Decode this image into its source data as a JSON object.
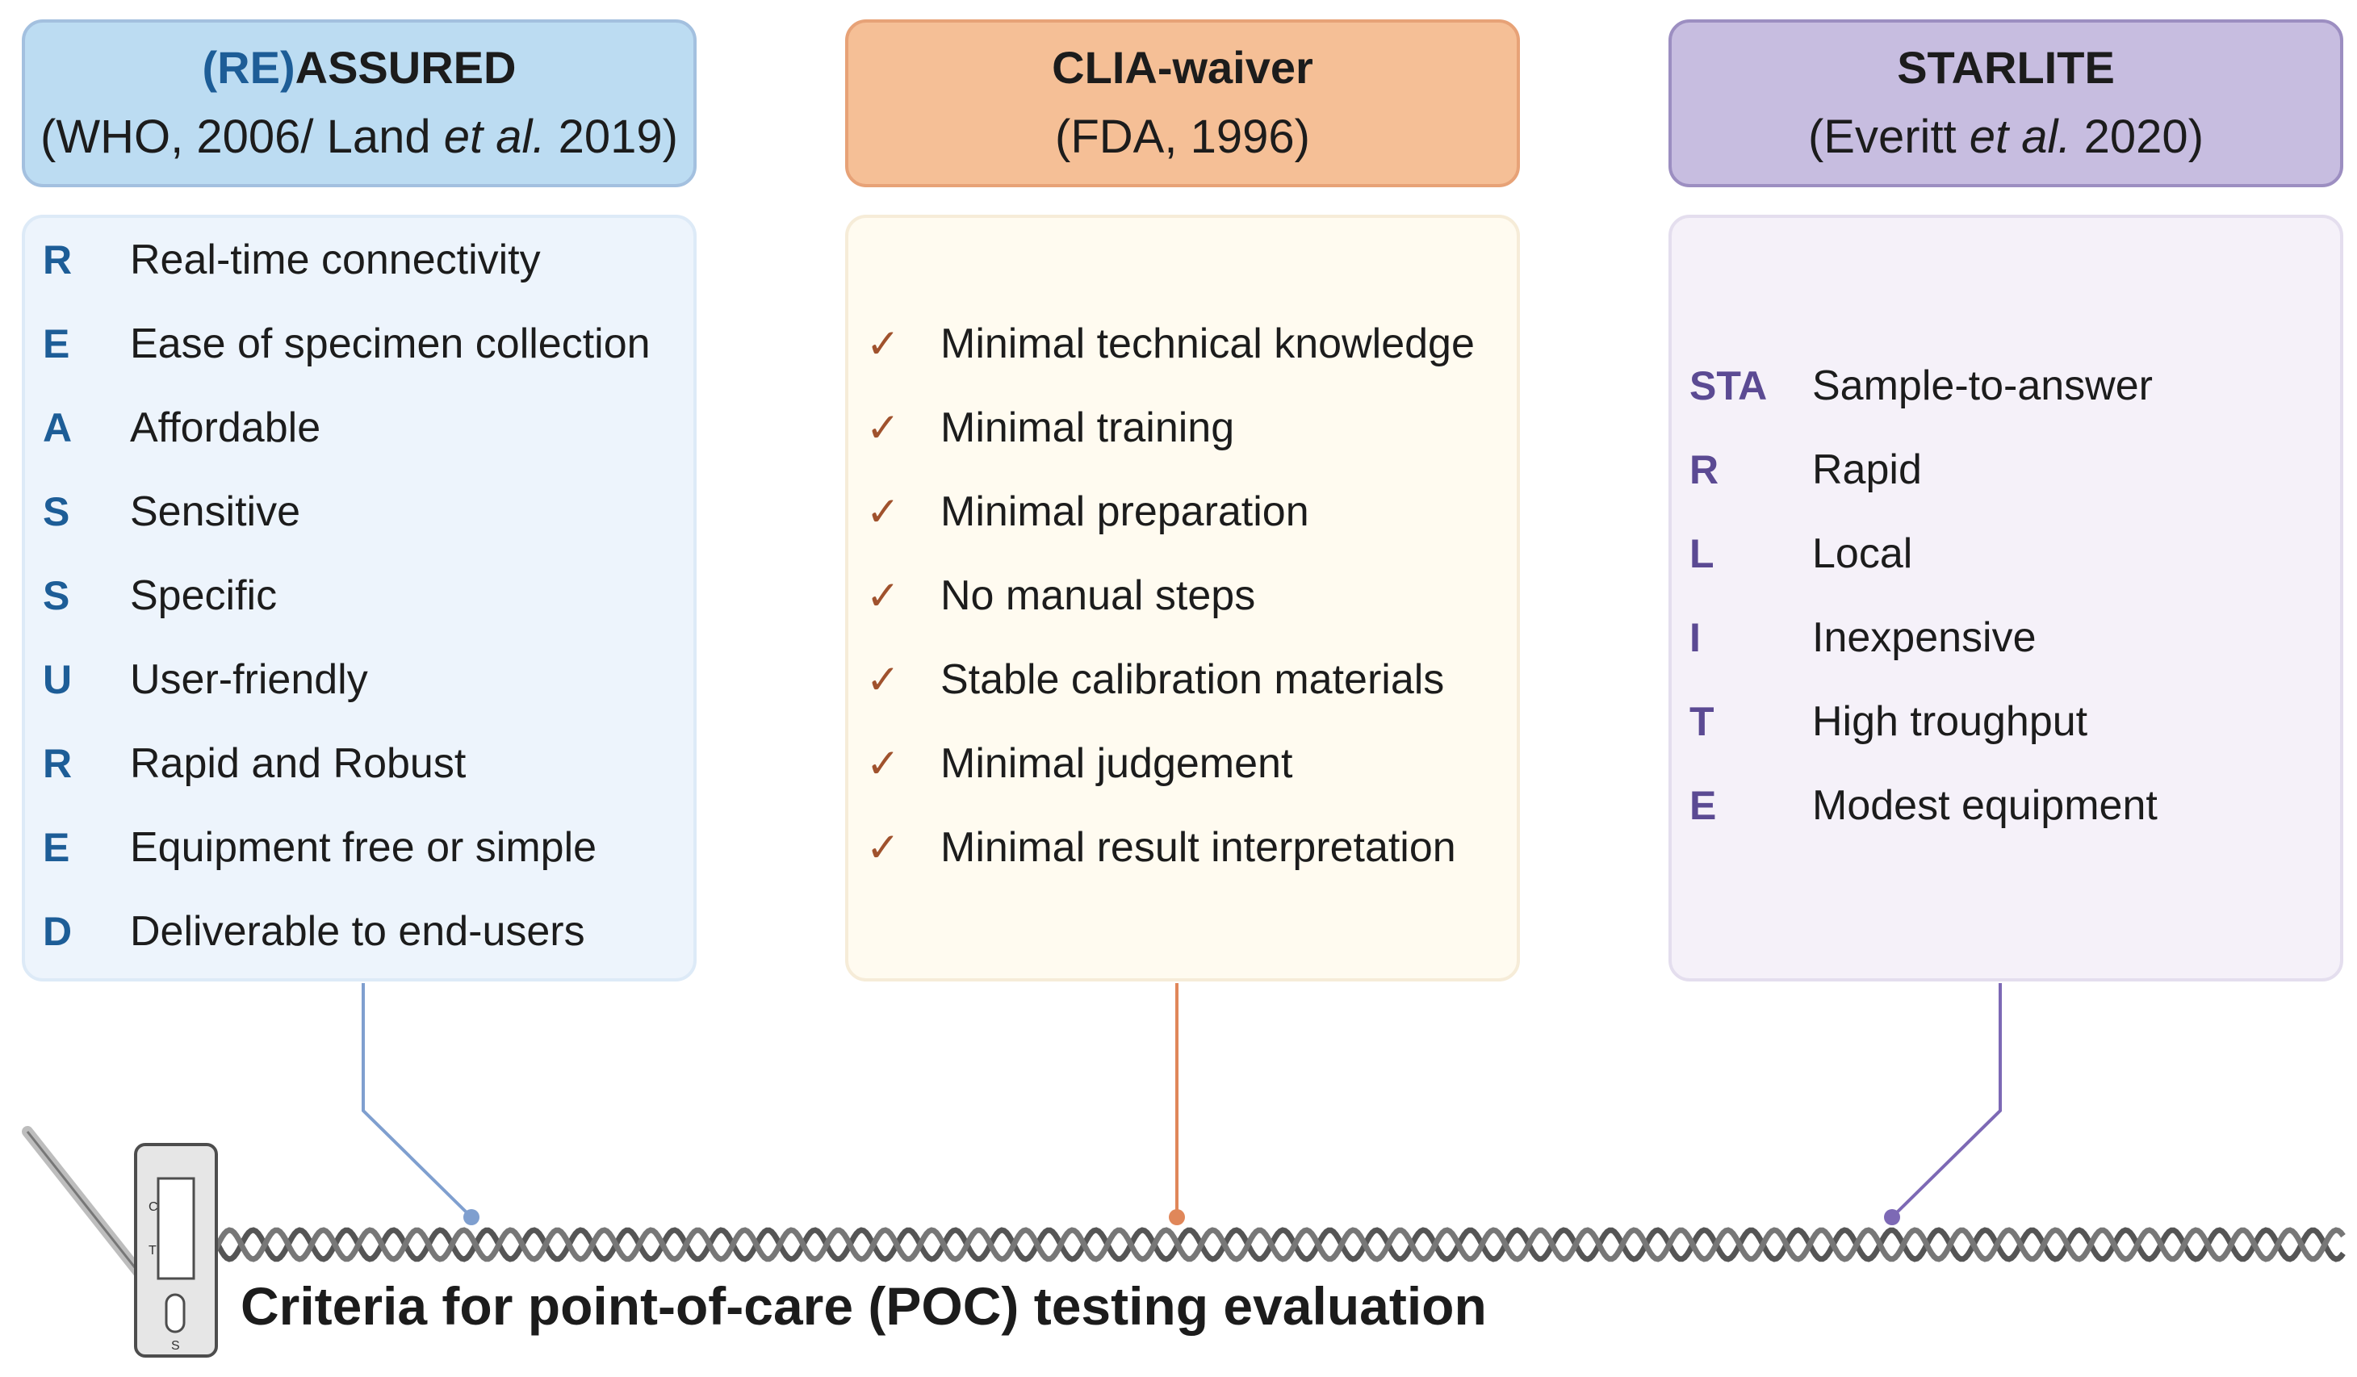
{
  "columns": [
    {
      "title_prefix": "(RE)",
      "title_main": "ASSURED",
      "sub_before": "(WHO, 2006/ Land ",
      "sub_italic": "et al.",
      "sub_after": " 2019)",
      "items": [
        {
          "letter": "R",
          "text": "Real-time connectivity"
        },
        {
          "letter": "E",
          "text": "Ease of specimen collection"
        },
        {
          "letter": "A",
          "text": "Affordable"
        },
        {
          "letter": "S",
          "text": "Sensitive"
        },
        {
          "letter": "S",
          "text": "Specific"
        },
        {
          "letter": "U",
          "text": "User-friendly"
        },
        {
          "letter": "R",
          "text": "Rapid and Robust"
        },
        {
          "letter": "E",
          "text": "Equipment free or simple"
        },
        {
          "letter": "D",
          "text": "Deliverable to end-users"
        }
      ]
    },
    {
      "title_main": "CLIA-waiver",
      "sub_before": "(FDA, 1996)",
      "check_symbol": "✓",
      "items": [
        {
          "text": "Minimal technical knowledge"
        },
        {
          "text": "Minimal training"
        },
        {
          "text": "Minimal preparation"
        },
        {
          "text": "No manual steps"
        },
        {
          "text": "Stable calibration materials"
        },
        {
          "text": "Minimal judgement"
        },
        {
          "text": "Minimal result interpretation"
        }
      ]
    },
    {
      "title_main": "STARLITE",
      "sub_before": "(Everitt ",
      "sub_italic": "et al.",
      "sub_after": " 2020)",
      "items": [
        {
          "letter": "STA",
          "text": "Sample-to-answer"
        },
        {
          "letter": "R",
          "text": "Rapid"
        },
        {
          "letter": "L",
          "text": "Local"
        },
        {
          "letter": "I",
          "text": "Inexpensive"
        },
        {
          "letter": "T",
          "text": "High troughput"
        },
        {
          "letter": "E",
          "text": "Modest equipment"
        }
      ]
    }
  ],
  "footer": {
    "title": "Criteria for point-of-care (POC) testing evaluation"
  },
  "test_strip": {
    "labels": [
      "C",
      "T",
      "S"
    ]
  },
  "colors": {
    "blue": "#1d5d97",
    "brown": "#a0522d",
    "purple": "#5b4a93",
    "blue_line": "#7f9fcf",
    "orange_line": "#e0875a",
    "purple_line": "#7d69b5",
    "helix": "#555555"
  }
}
